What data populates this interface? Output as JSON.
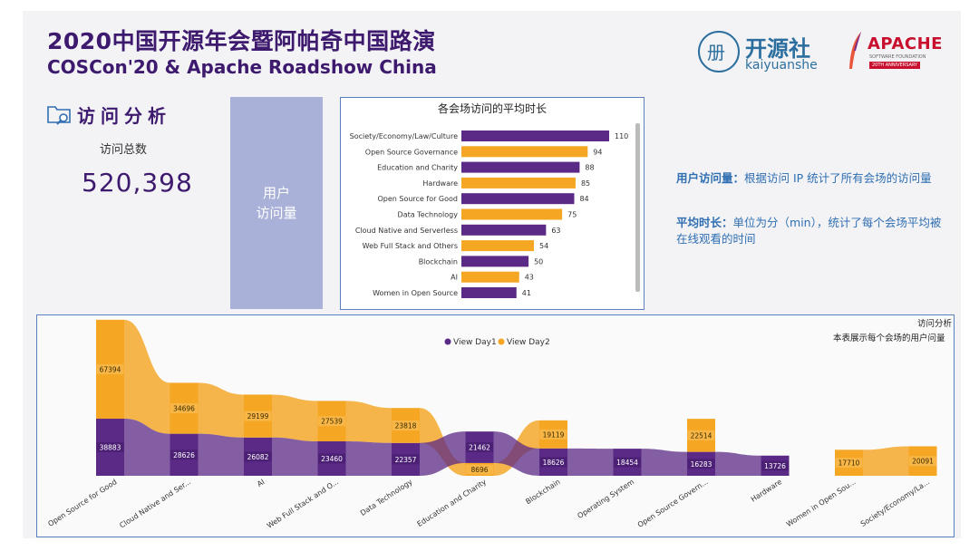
{
  "header": {
    "title_cn": "2020中国开源年会暨阿帕奇中国路演",
    "title_en": "COSCon'20 & Apache Roadshow China"
  },
  "logos": {
    "kaiyuanshe_cn": "开源社",
    "kaiyuanshe_en": "kaiyuanshe",
    "apache_name": "APACHE",
    "apache_sub": "SOFTWARE FOUNDATION",
    "apache_anniversary": "20TH ANNIVERSARY"
  },
  "section": {
    "title": "访问分析",
    "total_label": "访问总数",
    "total_value": "520,398",
    "card_line1": "用户",
    "card_line2": "访问量"
  },
  "notes": {
    "n1_head": "用户访问量：",
    "n1_body": "根据访问 IP 统计了所有会场的访问量",
    "n2_head": "平均时长：",
    "n2_body": "单位为分（min），统计了每个会场平均被在线观看的时间"
  },
  "colors": {
    "purple": "#5b2a86",
    "orange": "#f5a623",
    "title": "#3d1a6e"
  },
  "chart_data": [
    {
      "type": "bar",
      "orientation": "horizontal",
      "title": "各会场访问的平均时长",
      "categories": [
        "Society/Economy/Law/Culture",
        "Open Source Governance",
        "Education and Charity",
        "Hardware",
        "Open Source for Good",
        "Data Technology",
        "Cloud Native and Serverless",
        "Web Full Stack and Others",
        "Blockchain",
        "AI",
        "Women in Open Source"
      ],
      "values": [
        110,
        94,
        88,
        85,
        84,
        75,
        63,
        54,
        50,
        43,
        41
      ],
      "bar_colors": [
        "purple",
        "orange",
        "purple",
        "orange",
        "purple",
        "orange",
        "purple",
        "orange",
        "purple",
        "orange",
        "purple"
      ],
      "unit": "min",
      "xlim": [
        0,
        110
      ]
    },
    {
      "type": "ribbon",
      "title": "访问分析",
      "subtitle": "本表展示每个会场的用户问量",
      "legend": [
        "View Day1",
        "View Day2"
      ],
      "categories": [
        "Open Source for Good",
        "Cloud Native and Ser...",
        "AI",
        "Web Full Stack and O...",
        "Data Technology",
        "Education and Charity",
        "Blockchain",
        "Operating System",
        "Open Source Govern...",
        "Hardware",
        "Women in Open Sou...",
        "Society/Economy/La..."
      ],
      "series": [
        {
          "name": "View Day1",
          "values": [
            38883,
            28626,
            26082,
            23460,
            22357,
            21462,
            18626,
            18454,
            16283,
            13726,
            null,
            null
          ]
        },
        {
          "name": "View Day2",
          "values": [
            67394,
            34696,
            29199,
            27539,
            23818,
            8696,
            19119,
            null,
            22514,
            null,
            17710,
            20091
          ]
        }
      ]
    }
  ]
}
